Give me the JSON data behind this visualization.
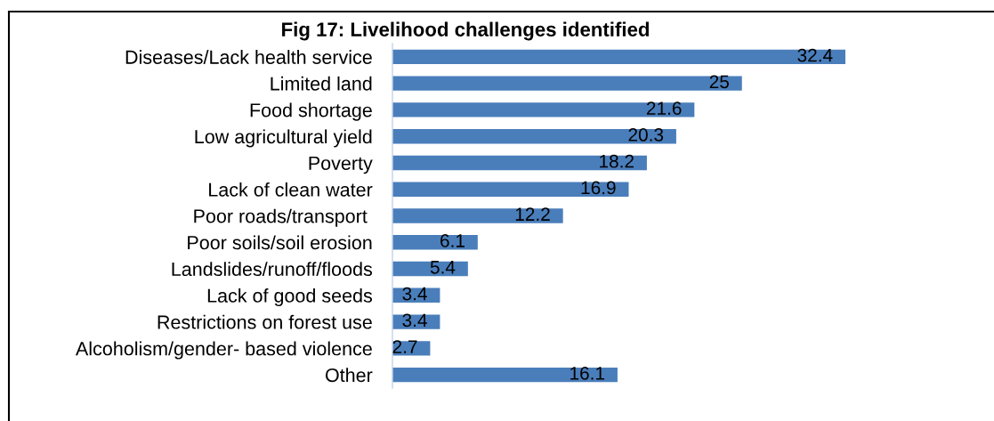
{
  "chart_data": {
    "type": "bar",
    "orientation": "horizontal",
    "title": "Fig 17: Livelihood challenges identified",
    "categories": [
      "Diseases/Lack health service",
      "Limited land",
      "Food shortage",
      "Low agricultural yield",
      "Poverty",
      "Lack of clean water",
      "Poor roads/transport ",
      "Poor soils/soil erosion",
      "Landslides/runoff/floods",
      "Lack of good seeds",
      "Restrictions on forest use",
      "Alcoholism/gender- based violence",
      "Other"
    ],
    "values": [
      32.4,
      25,
      21.6,
      20.3,
      18.2,
      16.9,
      12.2,
      6.1,
      5.4,
      3.4,
      3.4,
      2.7,
      16.1
    ],
    "color": "#4a7ebb",
    "data_labels": true,
    "tick_labels": "y"
  }
}
